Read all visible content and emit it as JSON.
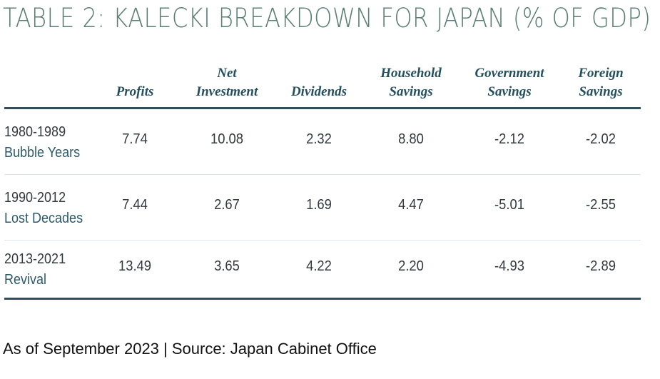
{
  "title": "TABLE 2: KALECKI BREAKDOWN FOR JAPAN (% OF GDP)",
  "columns": [
    {
      "line1": "",
      "line2": "Profits"
    },
    {
      "line1": "Net",
      "line2": "Investment"
    },
    {
      "line1": "",
      "line2": "Dividends"
    },
    {
      "line1": "Household",
      "line2": "Savings"
    },
    {
      "line1": "Government",
      "line2": "Savings"
    },
    {
      "line1": "Foreign",
      "line2": "Savings"
    }
  ],
  "rows": [
    {
      "years": "1980-1989",
      "era": "Bubble Years",
      "values": [
        "7.74",
        "10.08",
        "2.32",
        "8.80",
        "-2.12",
        "-2.02"
      ]
    },
    {
      "years": "1990-2012",
      "era": "Lost Decades",
      "values": [
        "7.44",
        "2.67",
        "1.69",
        "4.47",
        "-5.01",
        "-2.55"
      ]
    },
    {
      "years": "2013-2021",
      "era": "Revival",
      "values": [
        "13.49",
        "3.65",
        "4.22",
        "2.20",
        "-4.93",
        "-2.89"
      ]
    }
  ],
  "source": "As of September 2023 | Source: Japan Cabinet Office",
  "colors": {
    "title": "#5b7f74",
    "header": "#234f5f",
    "era": "#2c5a6c",
    "rule": "#2f4f5f"
  }
}
